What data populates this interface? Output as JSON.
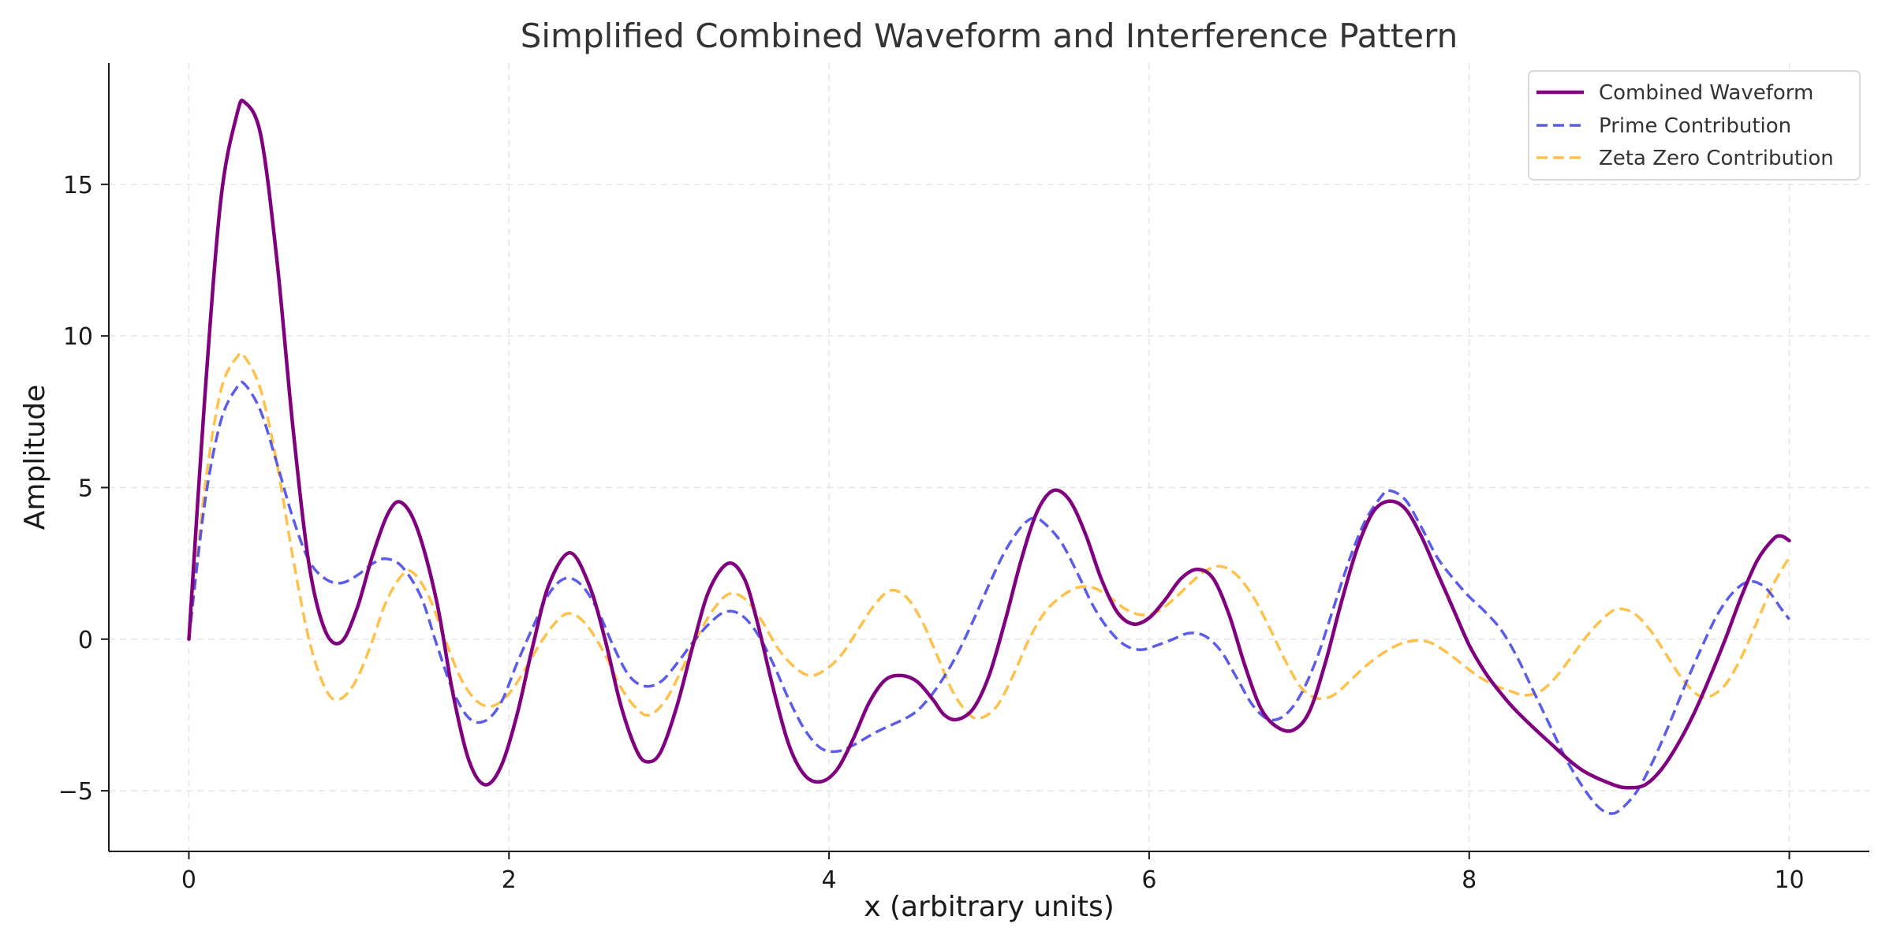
{
  "chart_data": {
    "type": "line",
    "title": "Simplified Combined Waveform and Interference Pattern",
    "xlabel": "x (arbitrary units)",
    "ylabel": "Amplitude",
    "xlim": [
      -0.5,
      10.5
    ],
    "ylim": [
      -7,
      19
    ],
    "xticks": [
      0,
      2,
      4,
      6,
      8,
      10
    ],
    "yticks": [
      -5,
      0,
      5,
      10,
      15
    ],
    "xtick_labels": [
      "0",
      "2",
      "4",
      "6",
      "8",
      "10"
    ],
    "ytick_labels": [
      "−5",
      "0",
      "5",
      "10",
      "15"
    ],
    "grid": true,
    "legend_position": "top-right",
    "series": [
      {
        "name": "Combined Waveform",
        "color": "#800080",
        "style": "solid",
        "points": [
          [
            0,
            0
          ],
          [
            0.1,
            8
          ],
          [
            0.2,
            14.5
          ],
          [
            0.3,
            17.3
          ],
          [
            0.35,
            17.7
          ],
          [
            0.45,
            16.6
          ],
          [
            0.55,
            12.5
          ],
          [
            0.65,
            7
          ],
          [
            0.75,
            2.5
          ],
          [
            0.85,
            0.3
          ],
          [
            0.95,
            -0.1
          ],
          [
            1.05,
            1
          ],
          [
            1.15,
            2.8
          ],
          [
            1.25,
            4.2
          ],
          [
            1.33,
            4.5
          ],
          [
            1.43,
            3.6
          ],
          [
            1.55,
            1.2
          ],
          [
            1.65,
            -1.8
          ],
          [
            1.75,
            -4
          ],
          [
            1.85,
            -4.8
          ],
          [
            1.95,
            -4.2
          ],
          [
            2.05,
            -2.5
          ],
          [
            2.15,
            -0.2
          ],
          [
            2.25,
            1.8
          ],
          [
            2.38,
            2.85
          ],
          [
            2.5,
            1.8
          ],
          [
            2.6,
            0
          ],
          [
            2.7,
            -2.2
          ],
          [
            2.8,
            -3.7
          ],
          [
            2.87,
            -4.05
          ],
          [
            2.95,
            -3.7
          ],
          [
            3.05,
            -2.2
          ],
          [
            3.15,
            -0.2
          ],
          [
            3.25,
            1.6
          ],
          [
            3.37,
            2.5
          ],
          [
            3.47,
            2
          ],
          [
            3.55,
            0.6
          ],
          [
            3.65,
            -1.6
          ],
          [
            3.75,
            -3.5
          ],
          [
            3.85,
            -4.5
          ],
          [
            3.95,
            -4.7
          ],
          [
            4.05,
            -4.3
          ],
          [
            4.15,
            -3.3
          ],
          [
            4.25,
            -2.1
          ],
          [
            4.35,
            -1.35
          ],
          [
            4.45,
            -1.2
          ],
          [
            4.55,
            -1.4
          ],
          [
            4.65,
            -2
          ],
          [
            4.72,
            -2.5
          ],
          [
            4.8,
            -2.65
          ],
          [
            4.9,
            -2.3
          ],
          [
            5,
            -1.2
          ],
          [
            5.1,
            0.6
          ],
          [
            5.2,
            2.6
          ],
          [
            5.3,
            4.2
          ],
          [
            5.4,
            4.9
          ],
          [
            5.5,
            4.6
          ],
          [
            5.6,
            3.5
          ],
          [
            5.7,
            2
          ],
          [
            5.8,
            0.9
          ],
          [
            5.9,
            0.5
          ],
          [
            6,
            0.7
          ],
          [
            6.1,
            1.3
          ],
          [
            6.2,
            2
          ],
          [
            6.3,
            2.3
          ],
          [
            6.4,
            2
          ],
          [
            6.5,
            0.8
          ],
          [
            6.6,
            -0.9
          ],
          [
            6.7,
            -2.3
          ],
          [
            6.8,
            -2.9
          ],
          [
            6.9,
            -3
          ],
          [
            7,
            -2.4
          ],
          [
            7.1,
            -0.8
          ],
          [
            7.2,
            1.2
          ],
          [
            7.3,
            3
          ],
          [
            7.4,
            4.2
          ],
          [
            7.5,
            4.55
          ],
          [
            7.6,
            4.3
          ],
          [
            7.7,
            3.4
          ],
          [
            7.8,
            2.2
          ],
          [
            7.9,
            1
          ],
          [
            8,
            -0.2
          ],
          [
            8.1,
            -1.1
          ],
          [
            8.2,
            -1.8
          ],
          [
            8.3,
            -2.4
          ],
          [
            8.5,
            -3.4
          ],
          [
            8.7,
            -4.3
          ],
          [
            8.9,
            -4.8
          ],
          [
            9,
            -4.9
          ],
          [
            9.1,
            -4.8
          ],
          [
            9.2,
            -4.3
          ],
          [
            9.3,
            -3.5
          ],
          [
            9.4,
            -2.5
          ],
          [
            9.5,
            -1.3
          ],
          [
            9.6,
            0
          ],
          [
            9.7,
            1.4
          ],
          [
            9.8,
            2.6
          ],
          [
            9.9,
            3.3
          ],
          [
            9.95,
            3.4
          ],
          [
            10,
            3.25
          ]
        ]
      },
      {
        "name": "Prime Contribution",
        "color": "#4040e6",
        "style": "dashed",
        "points": [
          [
            0,
            0
          ],
          [
            0.1,
            4.5
          ],
          [
            0.2,
            7.2
          ],
          [
            0.3,
            8.3
          ],
          [
            0.35,
            8.4
          ],
          [
            0.45,
            7.5
          ],
          [
            0.55,
            5.8
          ],
          [
            0.65,
            4
          ],
          [
            0.75,
            2.6
          ],
          [
            0.85,
            2
          ],
          [
            0.95,
            1.85
          ],
          [
            1.05,
            2.1
          ],
          [
            1.15,
            2.5
          ],
          [
            1.23,
            2.65
          ],
          [
            1.33,
            2.4
          ],
          [
            1.45,
            1.4
          ],
          [
            1.55,
            -0.2
          ],
          [
            1.65,
            -1.7
          ],
          [
            1.75,
            -2.6
          ],
          [
            1.85,
            -2.7
          ],
          [
            1.95,
            -2.1
          ],
          [
            2.05,
            -0.8
          ],
          [
            2.15,
            0.4
          ],
          [
            2.25,
            1.5
          ],
          [
            2.35,
            2
          ],
          [
            2.45,
            1.8
          ],
          [
            2.55,
            1
          ],
          [
            2.65,
            -0.2
          ],
          [
            2.75,
            -1.2
          ],
          [
            2.85,
            -1.55
          ],
          [
            2.95,
            -1.4
          ],
          [
            3.05,
            -0.8
          ],
          [
            3.15,
            -0.1
          ],
          [
            3.25,
            0.5
          ],
          [
            3.35,
            0.9
          ],
          [
            3.45,
            0.8
          ],
          [
            3.55,
            0.2
          ],
          [
            3.65,
            -0.8
          ],
          [
            3.75,
            -2
          ],
          [
            3.85,
            -3
          ],
          [
            3.95,
            -3.6
          ],
          [
            4.05,
            -3.7
          ],
          [
            4.15,
            -3.5
          ],
          [
            4.3,
            -3.05
          ],
          [
            4.5,
            -2.55
          ],
          [
            4.6,
            -2.1
          ],
          [
            4.7,
            -1.4
          ],
          [
            4.8,
            -0.5
          ],
          [
            4.9,
            0.6
          ],
          [
            5,
            1.8
          ],
          [
            5.1,
            2.9
          ],
          [
            5.2,
            3.7
          ],
          [
            5.28,
            4
          ],
          [
            5.35,
            3.8
          ],
          [
            5.45,
            3.2
          ],
          [
            5.55,
            2.2
          ],
          [
            5.65,
            1.1
          ],
          [
            5.75,
            0.3
          ],
          [
            5.85,
            -0.2
          ],
          [
            5.95,
            -0.35
          ],
          [
            6.05,
            -0.2
          ],
          [
            6.15,
            0
          ],
          [
            6.25,
            0.2
          ],
          [
            6.35,
            0.1
          ],
          [
            6.45,
            -0.4
          ],
          [
            6.55,
            -1.3
          ],
          [
            6.65,
            -2.2
          ],
          [
            6.75,
            -2.65
          ],
          [
            6.85,
            -2.5
          ],
          [
            6.95,
            -1.8
          ],
          [
            7.05,
            -0.6
          ],
          [
            7.15,
            1
          ],
          [
            7.25,
            2.6
          ],
          [
            7.35,
            3.9
          ],
          [
            7.45,
            4.7
          ],
          [
            7.5,
            4.9
          ],
          [
            7.6,
            4.6
          ],
          [
            7.7,
            3.7
          ],
          [
            7.8,
            2.7
          ],
          [
            7.9,
            2
          ],
          [
            8,
            1.4
          ],
          [
            8.1,
            0.9
          ],
          [
            8.2,
            0.3
          ],
          [
            8.3,
            -0.6
          ],
          [
            8.4,
            -1.7
          ],
          [
            8.5,
            -2.8
          ],
          [
            8.6,
            -3.9
          ],
          [
            8.7,
            -4.8
          ],
          [
            8.8,
            -5.5
          ],
          [
            8.88,
            -5.75
          ],
          [
            8.95,
            -5.6
          ],
          [
            9.05,
            -5
          ],
          [
            9.15,
            -4
          ],
          [
            9.25,
            -2.8
          ],
          [
            9.35,
            -1.5
          ],
          [
            9.45,
            -0.3
          ],
          [
            9.55,
            0.8
          ],
          [
            9.65,
            1.55
          ],
          [
            9.75,
            1.9
          ],
          [
            9.85,
            1.7
          ],
          [
            9.95,
            1
          ],
          [
            10,
            0.65
          ]
        ]
      },
      {
        "name": "Zeta Zero Contribution",
        "color": "#ffb62c",
        "style": "dashed",
        "points": [
          [
            0,
            0
          ],
          [
            0.1,
            5
          ],
          [
            0.2,
            8.2
          ],
          [
            0.3,
            9.3
          ],
          [
            0.35,
            9.3
          ],
          [
            0.45,
            8.2
          ],
          [
            0.55,
            5.8
          ],
          [
            0.65,
            2.7
          ],
          [
            0.75,
            0
          ],
          [
            0.85,
            -1.6
          ],
          [
            0.93,
            -2
          ],
          [
            1.03,
            -1.5
          ],
          [
            1.13,
            -0.3
          ],
          [
            1.23,
            1.2
          ],
          [
            1.33,
            2.1
          ],
          [
            1.4,
            2.2
          ],
          [
            1.5,
            1.4
          ],
          [
            1.6,
            0
          ],
          [
            1.7,
            -1.3
          ],
          [
            1.8,
            -2.05
          ],
          [
            1.9,
            -2.2
          ],
          [
            2,
            -1.8
          ],
          [
            2.1,
            -1
          ],
          [
            2.2,
            -0.1
          ],
          [
            2.3,
            0.6
          ],
          [
            2.38,
            0.85
          ],
          [
            2.48,
            0.5
          ],
          [
            2.6,
            -0.5
          ],
          [
            2.7,
            -1.6
          ],
          [
            2.8,
            -2.3
          ],
          [
            2.88,
            -2.5
          ],
          [
            2.98,
            -2
          ],
          [
            3.08,
            -1
          ],
          [
            3.18,
            0.1
          ],
          [
            3.28,
            1
          ],
          [
            3.38,
            1.5
          ],
          [
            3.48,
            1.3
          ],
          [
            3.58,
            0.6
          ],
          [
            3.68,
            -0.3
          ],
          [
            3.78,
            -0.9
          ],
          [
            3.88,
            -1.2
          ],
          [
            3.98,
            -1
          ],
          [
            4.08,
            -0.5
          ],
          [
            4.18,
            0.3
          ],
          [
            4.28,
            1.1
          ],
          [
            4.38,
            1.6
          ],
          [
            4.48,
            1.4
          ],
          [
            4.58,
            0.6
          ],
          [
            4.68,
            -0.6
          ],
          [
            4.78,
            -1.8
          ],
          [
            4.88,
            -2.5
          ],
          [
            4.95,
            -2.6
          ],
          [
            5.05,
            -2.2
          ],
          [
            5.15,
            -1.2
          ],
          [
            5.25,
            0
          ],
          [
            5.35,
            0.9
          ],
          [
            5.45,
            1.4
          ],
          [
            5.55,
            1.7
          ],
          [
            5.65,
            1.7
          ],
          [
            5.75,
            1.4
          ],
          [
            5.85,
            1
          ],
          [
            5.95,
            0.8
          ],
          [
            6.05,
            0.9
          ],
          [
            6.15,
            1.3
          ],
          [
            6.25,
            1.8
          ],
          [
            6.35,
            2.25
          ],
          [
            6.45,
            2.4
          ],
          [
            6.55,
            2.1
          ],
          [
            6.65,
            1.4
          ],
          [
            6.75,
            0.4
          ],
          [
            6.85,
            -0.7
          ],
          [
            6.95,
            -1.6
          ],
          [
            7.05,
            -1.95
          ],
          [
            7.15,
            -1.85
          ],
          [
            7.25,
            -1.4
          ],
          [
            7.35,
            -0.9
          ],
          [
            7.45,
            -0.5
          ],
          [
            7.55,
            -0.2
          ],
          [
            7.65,
            -0.05
          ],
          [
            7.75,
            -0.1
          ],
          [
            7.85,
            -0.4
          ],
          [
            7.95,
            -0.8
          ],
          [
            8.05,
            -1.2
          ],
          [
            8.15,
            -1.5
          ],
          [
            8.25,
            -1.7
          ],
          [
            8.35,
            -1.85
          ],
          [
            8.45,
            -1.7
          ],
          [
            8.55,
            -1.2
          ],
          [
            8.65,
            -0.5
          ],
          [
            8.75,
            0.2
          ],
          [
            8.85,
            0.75
          ],
          [
            8.93,
            1
          ],
          [
            9.03,
            0.85
          ],
          [
            9.13,
            0.3
          ],
          [
            9.23,
            -0.5
          ],
          [
            9.33,
            -1.3
          ],
          [
            9.43,
            -1.85
          ],
          [
            9.5,
            -1.9
          ],
          [
            9.6,
            -1.5
          ],
          [
            9.7,
            -0.6
          ],
          [
            9.8,
            0.6
          ],
          [
            9.9,
            1.8
          ],
          [
            10,
            2.7
          ]
        ]
      }
    ]
  }
}
